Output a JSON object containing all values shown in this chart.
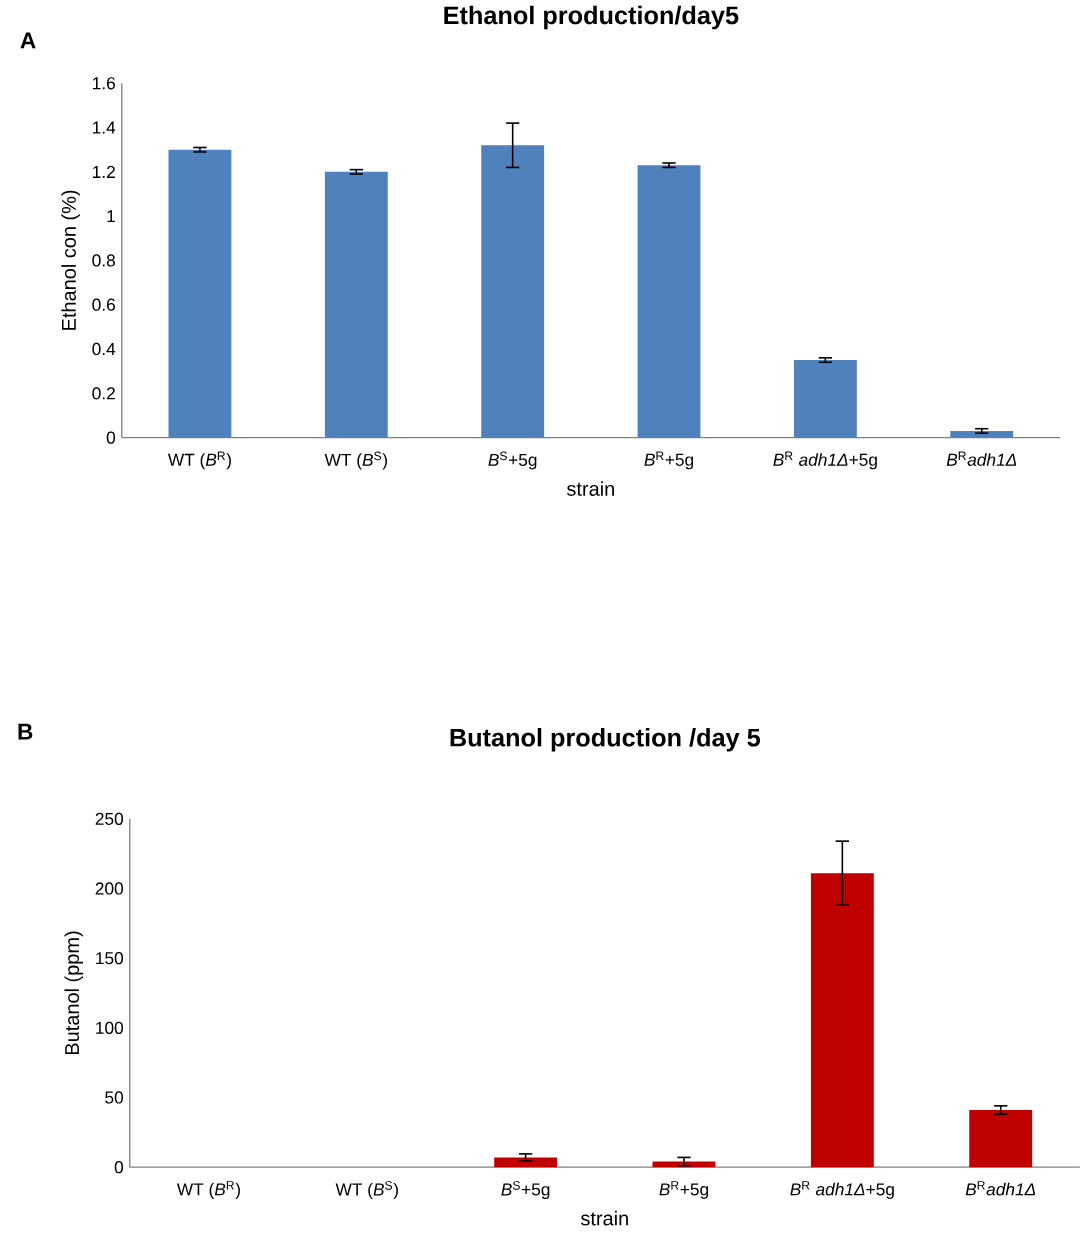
{
  "chart_data": [
    {
      "type": "bar",
      "title": "Ethanol production/day5",
      "xlabel": "strain",
      "ylabel": "Ethanol con (%)",
      "annotations": [
        "A"
      ],
      "categories": [
        "WT (*B*$^{R}$)",
        "WT (*B*$^{S}$)",
        "*B*$^{S}$+5g",
        "*B*$^{R}$+5g",
        "*B*$^{R}$ *adh1Δ*+5g",
        "*B*$^{R}$*adh1Δ*"
      ],
      "values": [
        1.3,
        1.2,
        1.32,
        1.23,
        0.35,
        0.03
      ],
      "errors": [
        0.01,
        0.01,
        0.1,
        0.01,
        0.01,
        0.01
      ],
      "color": "#4f81bd",
      "ylim": [
        0,
        1.6
      ],
      "yticks": [
        0,
        0.2,
        0.4,
        0.6,
        0.8,
        1,
        1.2,
        1.4,
        1.6
      ]
    },
    {
      "type": "bar",
      "title": "Butanol production /day 5",
      "xlabel": "strain",
      "ylabel": "Butanol (ppm)",
      "annotations": [
        "B"
      ],
      "categories": [
        "WT (*B*$^{R}$)",
        "WT (*B*$^{S}$)",
        "*B*$^{S}$+5g",
        "*B*$^{R}$+5g",
        "*B*$^{R}$ *adh1Δ*+5g",
        "*B*$^{R}$*adh1Δ*"
      ],
      "values": [
        0,
        0,
        7,
        4,
        211,
        41
      ],
      "errors": [
        null,
        null,
        2.5,
        3,
        23,
        3
      ],
      "color": "#c00000",
      "ylim": [
        0,
        250
      ],
      "yticks": [
        0,
        50,
        100,
        150,
        200,
        250
      ]
    }
  ]
}
